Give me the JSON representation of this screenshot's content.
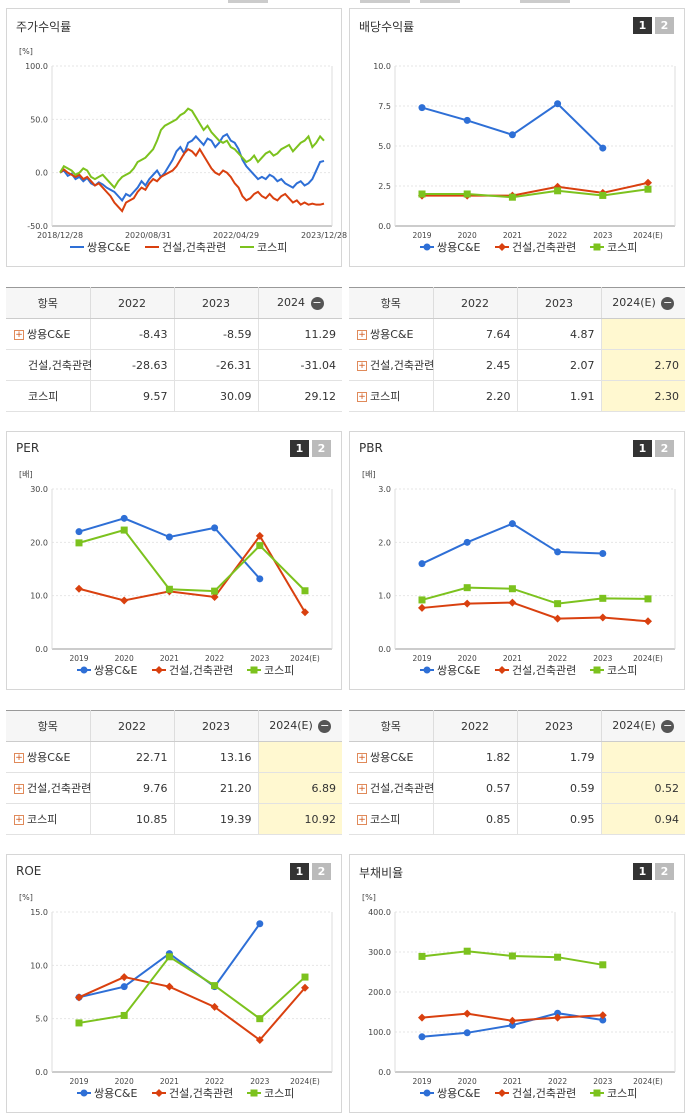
{
  "panels": {
    "price": {
      "title": "주가수익률"
    },
    "div": {
      "title": "배당수익률"
    },
    "per": {
      "title": "PER"
    },
    "pbr": {
      "title": "PBR"
    },
    "roe": {
      "title": "ROE"
    },
    "debt": {
      "title": "부채비율"
    }
  },
  "page_buttons": [
    "1",
    "2"
  ],
  "legend": [
    "쌍용C&E",
    "건설,건축관련",
    "코스피"
  ],
  "colors": {
    "s1": "#2e6fd6",
    "s2": "#d9400f",
    "s3": "#7cc21e"
  },
  "tables": {
    "price": {
      "head": [
        "항목",
        "2022",
        "2023",
        "2024"
      ],
      "rows": [
        {
          "name": "쌍용C&E",
          "plus": true,
          "v": [
            "-8.43",
            "-8.59",
            "11.29"
          ]
        },
        {
          "name": "건설,건축관련",
          "plus": false,
          "v": [
            "-28.63",
            "-26.31",
            "-31.04"
          ]
        },
        {
          "name": "코스피",
          "plus": false,
          "v": [
            "9.57",
            "30.09",
            "29.12"
          ]
        }
      ]
    },
    "div": {
      "head": [
        "항목",
        "2022",
        "2023",
        "2024(E)"
      ],
      "rows": [
        {
          "name": "쌍용C&E",
          "plus": true,
          "v": [
            "7.64",
            "4.87",
            ""
          ]
        },
        {
          "name": "건설,건축관련",
          "plus": true,
          "v": [
            "2.45",
            "2.07",
            "2.70"
          ]
        },
        {
          "name": "코스피",
          "plus": true,
          "v": [
            "2.20",
            "1.91",
            "2.30"
          ]
        }
      ]
    },
    "per": {
      "head": [
        "항목",
        "2022",
        "2023",
        "2024(E)"
      ],
      "rows": [
        {
          "name": "쌍용C&E",
          "plus": true,
          "v": [
            "22.71",
            "13.16",
            ""
          ]
        },
        {
          "name": "건설,건축관련",
          "plus": true,
          "v": [
            "9.76",
            "21.20",
            "6.89"
          ]
        },
        {
          "name": "코스피",
          "plus": true,
          "v": [
            "10.85",
            "19.39",
            "10.92"
          ]
        }
      ]
    },
    "pbr": {
      "head": [
        "항목",
        "2022",
        "2023",
        "2024(E)"
      ],
      "rows": [
        {
          "name": "쌍용C&E",
          "plus": true,
          "v": [
            "1.82",
            "1.79",
            ""
          ]
        },
        {
          "name": "건설,건축관련",
          "plus": true,
          "v": [
            "0.57",
            "0.59",
            "0.52"
          ]
        },
        {
          "name": "코스피",
          "plus": true,
          "v": [
            "0.85",
            "0.95",
            "0.94"
          ]
        }
      ]
    }
  },
  "chart_data": [
    {
      "id": "price",
      "type": "line",
      "title": "주가수익률",
      "unit": "[%]",
      "ylim": [
        -50,
        100
      ],
      "yticks": [
        "100.0",
        "50.0",
        "0.0",
        "-50.0"
      ],
      "xticks": [
        "2018/12/28",
        "2020/08/31",
        "2022/04/29",
        "2023/12/28"
      ],
      "series": [
        {
          "name": "쌍용C&E",
          "values": [
            0,
            2,
            -3,
            -1,
            -6,
            -4,
            -8,
            -5,
            -10,
            -12,
            -9,
            -11,
            -14,
            -16,
            -18,
            -22,
            -26,
            -20,
            -22,
            -18,
            -14,
            -8,
            -12,
            -6,
            -2,
            2,
            -4,
            0,
            6,
            12,
            20,
            24,
            18,
            28,
            30,
            34,
            30,
            26,
            32,
            30,
            24,
            28,
            34,
            36,
            30,
            28,
            22,
            12,
            6,
            2,
            -2,
            -6,
            -4,
            -6,
            -2,
            -4,
            -8,
            -6,
            -10,
            -12,
            -14,
            -10,
            -8,
            -12,
            -10,
            -6,
            2,
            10,
            11
          ]
        },
        {
          "name": "건설,건축관련",
          "values": [
            0,
            3,
            0,
            -2,
            -4,
            -2,
            -6,
            -4,
            -8,
            -12,
            -10,
            -14,
            -18,
            -22,
            -28,
            -32,
            -36,
            -28,
            -26,
            -24,
            -18,
            -14,
            -16,
            -10,
            -6,
            -8,
            -4,
            -2,
            0,
            2,
            6,
            12,
            18,
            22,
            20,
            16,
            22,
            16,
            10,
            4,
            0,
            -2,
            2,
            0,
            -4,
            -10,
            -14,
            -22,
            -26,
            -24,
            -20,
            -18,
            -22,
            -24,
            -20,
            -24,
            -26,
            -22,
            -20,
            -24,
            -28,
            -26,
            -30,
            -28,
            -30,
            -29,
            -30,
            -30,
            -29
          ]
        },
        {
          "name": "코스피",
          "values": [
            0,
            6,
            4,
            2,
            -2,
            0,
            4,
            2,
            -4,
            -6,
            -4,
            -2,
            -6,
            -10,
            -14,
            -8,
            -4,
            -2,
            0,
            4,
            10,
            12,
            14,
            18,
            22,
            30,
            40,
            44,
            46,
            48,
            50,
            54,
            56,
            60,
            58,
            52,
            46,
            40,
            44,
            38,
            34,
            30,
            28,
            30,
            24,
            22,
            18,
            14,
            10,
            12,
            16,
            10,
            14,
            18,
            20,
            16,
            18,
            22,
            24,
            26,
            20,
            24,
            28,
            30,
            34,
            24,
            28,
            34,
            30
          ]
        }
      ]
    },
    {
      "id": "div",
      "type": "line",
      "title": "배당수익률",
      "unit": "",
      "ylim": [
        0,
        10
      ],
      "yticks": [
        "10.0",
        "7.5",
        "5.0",
        "2.5",
        "0.0"
      ],
      "xticks": [
        "2019",
        "2020",
        "2021",
        "2022",
        "2023",
        "2024(E)"
      ],
      "series": [
        {
          "name": "쌍용C&E",
          "values": [
            7.4,
            6.6,
            5.7,
            7.64,
            4.87,
            null
          ]
        },
        {
          "name": "건설,건축관련",
          "values": [
            1.9,
            1.9,
            1.9,
            2.45,
            2.07,
            2.7
          ]
        },
        {
          "name": "코스피",
          "values": [
            2.0,
            2.0,
            1.8,
            2.2,
            1.91,
            2.3
          ]
        }
      ]
    },
    {
      "id": "per",
      "type": "line",
      "title": "PER",
      "unit": "[배]",
      "ylim": [
        0,
        30
      ],
      "yticks": [
        "30.0",
        "20.0",
        "10.0",
        "0.0"
      ],
      "xticks": [
        "2019",
        "2020",
        "2021",
        "2022",
        "2023",
        "2024(E)"
      ],
      "series": [
        {
          "name": "쌍용C&E",
          "values": [
            22.0,
            24.5,
            21.0,
            22.71,
            13.16,
            null
          ]
        },
        {
          "name": "건설,건축관련",
          "values": [
            11.3,
            9.1,
            10.8,
            9.76,
            21.2,
            6.89
          ]
        },
        {
          "name": "코스피",
          "values": [
            19.9,
            22.3,
            11.2,
            10.85,
            19.39,
            10.92
          ]
        }
      ]
    },
    {
      "id": "pbr",
      "type": "line",
      "title": "PBR",
      "unit": "[배]",
      "ylim": [
        0,
        3
      ],
      "yticks": [
        "3.0",
        "2.0",
        "1.0",
        "0.0"
      ],
      "xticks": [
        "2019",
        "2020",
        "2021",
        "2022",
        "2023",
        "2024(E)"
      ],
      "series": [
        {
          "name": "쌍용C&E",
          "values": [
            1.6,
            2.0,
            2.35,
            1.82,
            1.79,
            null
          ]
        },
        {
          "name": "건설,건축관련",
          "values": [
            0.77,
            0.85,
            0.87,
            0.57,
            0.59,
            0.52
          ]
        },
        {
          "name": "코스피",
          "values": [
            0.92,
            1.15,
            1.13,
            0.85,
            0.95,
            0.94
          ]
        }
      ]
    },
    {
      "id": "roe",
      "type": "line",
      "title": "ROE",
      "unit": "[%]",
      "ylim": [
        0,
        15
      ],
      "yticks": [
        "15.0",
        "10.0",
        "5.0",
        "0.0"
      ],
      "xticks": [
        "2019",
        "2020",
        "2021",
        "2022",
        "2023",
        "2024(E)"
      ],
      "series": [
        {
          "name": "쌍용C&E",
          "values": [
            7.0,
            8.0,
            11.1,
            8.0,
            13.9,
            null
          ]
        },
        {
          "name": "건설,건축관련",
          "values": [
            7.0,
            8.9,
            8.0,
            6.1,
            3.0,
            7.9
          ]
        },
        {
          "name": "코스피",
          "values": [
            4.6,
            5.3,
            10.8,
            8.1,
            5.0,
            8.9
          ]
        }
      ]
    },
    {
      "id": "debt",
      "type": "line",
      "title": "부채비율",
      "unit": "[%]",
      "ylim": [
        0,
        400
      ],
      "yticks": [
        "400.0",
        "300.0",
        "200.0",
        "100.0",
        "0.0"
      ],
      "xticks": [
        "2019",
        "2020",
        "2021",
        "2022",
        "2023",
        "2024(E)"
      ],
      "series": [
        {
          "name": "쌍용C&E",
          "values": [
            88,
            98,
            117,
            147,
            130,
            null
          ]
        },
        {
          "name": "건설,건축관련",
          "values": [
            136,
            146,
            128,
            136,
            142,
            null
          ]
        },
        {
          "name": "코스피",
          "values": [
            289,
            302,
            290,
            287,
            268,
            null
          ]
        }
      ]
    }
  ]
}
